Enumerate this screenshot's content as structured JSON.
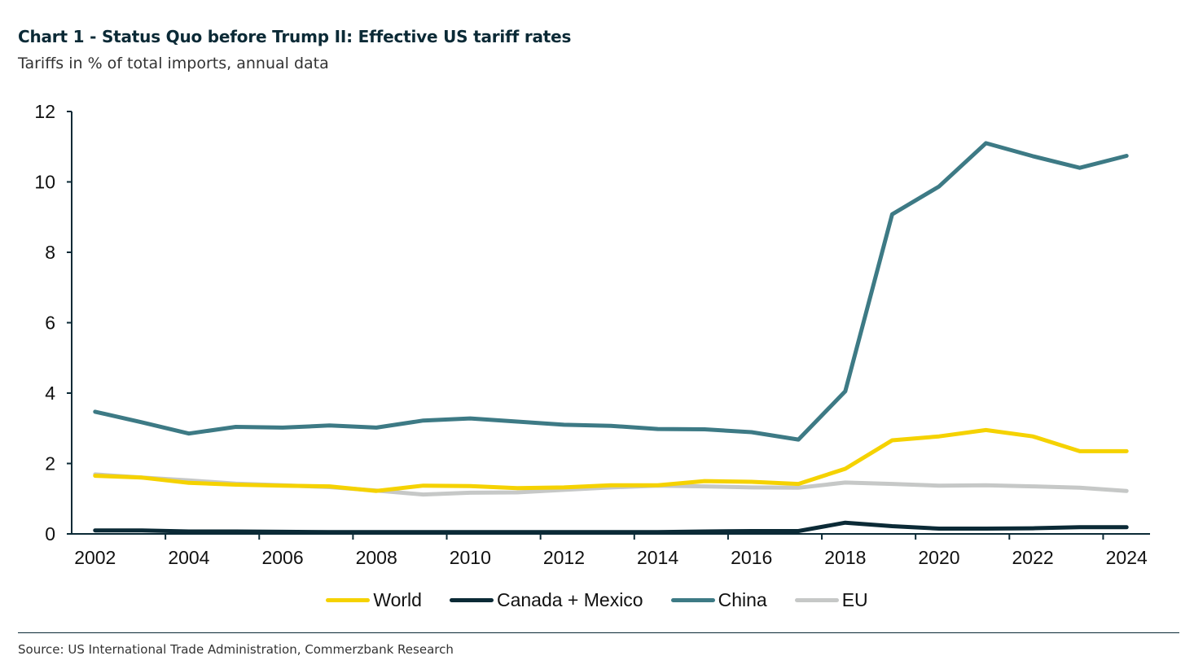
{
  "chart_data": {
    "type": "line",
    "title": "Chart 1 - Status Quo before Trump II: Effective US tariff rates",
    "subtitle": "Tariffs in % of total imports, annual data",
    "xlabel": "",
    "ylabel": "",
    "ylim": [
      0,
      12
    ],
    "yticks": [
      "0",
      "2",
      "4",
      "6",
      "8",
      "10",
      "12"
    ],
    "x": [
      2002,
      2003,
      2004,
      2005,
      2006,
      2007,
      2008,
      2009,
      2010,
      2011,
      2012,
      2013,
      2014,
      2015,
      2016,
      2017,
      2018,
      2019,
      2020,
      2021,
      2022,
      2023,
      2024
    ],
    "xtick_labels": [
      "2002",
      "2004",
      "2006",
      "2008",
      "2010",
      "2012",
      "2014",
      "2016",
      "2018",
      "2020",
      "2022",
      "2024"
    ],
    "legend_position": "bottom",
    "grid": false,
    "series": [
      {
        "name": "World",
        "color": "#f5d200",
        "values": [
          1.65,
          1.6,
          1.45,
          1.4,
          1.37,
          1.35,
          1.22,
          1.37,
          1.36,
          1.3,
          1.32,
          1.38,
          1.38,
          1.5,
          1.48,
          1.42,
          1.85,
          2.66,
          2.77,
          2.95,
          2.77,
          2.35,
          2.35
        ]
      },
      {
        "name": "Canada + Mexico",
        "color": "#0b2a36",
        "values": [
          0.1,
          0.1,
          0.07,
          0.07,
          0.06,
          0.05,
          0.05,
          0.05,
          0.05,
          0.05,
          0.05,
          0.05,
          0.05,
          0.07,
          0.08,
          0.08,
          0.32,
          0.22,
          0.15,
          0.15,
          0.16,
          0.19,
          0.19
        ]
      },
      {
        "name": "China",
        "color": "#3d7a85",
        "values": [
          3.47,
          3.17,
          2.85,
          3.04,
          3.02,
          3.08,
          3.02,
          3.22,
          3.28,
          3.19,
          3.1,
          3.07,
          2.98,
          2.97,
          2.89,
          2.68,
          4.05,
          9.08,
          9.87,
          11.1,
          10.73,
          10.4,
          10.74
        ]
      },
      {
        "name": "EU",
        "color": "#c6c8c7",
        "values": [
          1.69,
          1.6,
          1.52,
          1.43,
          1.38,
          1.33,
          1.23,
          1.12,
          1.17,
          1.18,
          1.25,
          1.32,
          1.37,
          1.35,
          1.32,
          1.31,
          1.46,
          1.42,
          1.37,
          1.38,
          1.35,
          1.31,
          1.22
        ]
      }
    ]
  },
  "source": "Source: US International Trade Administration, Commerzbank Research"
}
